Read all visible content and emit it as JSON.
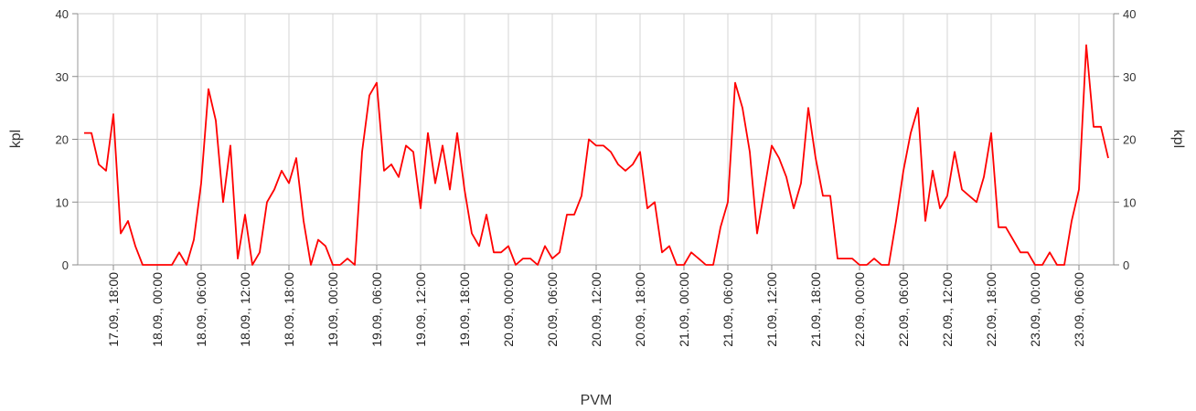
{
  "chart_data": {
    "type": "line",
    "xlabel": "PVM",
    "ylabel": "kpl",
    "ylabel_right": "kpl",
    "ylim": [
      0,
      40
    ],
    "yticks": [
      0,
      10,
      20,
      30,
      40
    ],
    "grid": true,
    "x_ticks": [
      {
        "label": "17.09., 18:00",
        "index": 4
      },
      {
        "label": "18.09., 00:00",
        "index": 10
      },
      {
        "label": "18.09., 06:00",
        "index": 16
      },
      {
        "label": "18.09., 12:00",
        "index": 22
      },
      {
        "label": "18.09., 18:00",
        "index": 28
      },
      {
        "label": "19.09., 00:00",
        "index": 34
      },
      {
        "label": "19.09., 06:00",
        "index": 40
      },
      {
        "label": "19.09., 12:00",
        "index": 46
      },
      {
        "label": "19.09., 18:00",
        "index": 52
      },
      {
        "label": "20.09., 00:00",
        "index": 58
      },
      {
        "label": "20.09., 06:00",
        "index": 64
      },
      {
        "label": "20.09., 12:00",
        "index": 70
      },
      {
        "label": "20.09., 18:00",
        "index": 76
      },
      {
        "label": "21.09., 00:00",
        "index": 82
      },
      {
        "label": "21.09., 06:00",
        "index": 88
      },
      {
        "label": "21.09., 12:00",
        "index": 94
      },
      {
        "label": "21.09., 18:00",
        "index": 100
      },
      {
        "label": "22.09., 00:00",
        "index": 106
      },
      {
        "label": "22.09., 06:00",
        "index": 112
      },
      {
        "label": "22.09., 12:00",
        "index": 118
      },
      {
        "label": "22.09., 18:00",
        "index": 124
      },
      {
        "label": "23.09., 00:00",
        "index": 130
      },
      {
        "label": "23.09., 06:00",
        "index": 136
      }
    ],
    "series": [
      {
        "color": "#ff0000",
        "values": [
          21,
          21,
          16,
          15,
          24,
          5,
          7,
          3,
          0,
          0,
          0,
          0,
          0,
          2,
          0,
          4,
          13,
          28,
          23,
          10,
          19,
          1,
          8,
          0,
          2,
          10,
          12,
          15,
          13,
          17,
          7,
          0,
          4,
          3,
          0,
          0,
          1,
          0,
          18,
          27,
          29,
          15,
          16,
          14,
          19,
          18,
          9,
          21,
          13,
          19,
          12,
          21,
          12,
          5,
          3,
          8,
          2,
          2,
          3,
          0,
          1,
          1,
          0,
          3,
          1,
          2,
          8,
          8,
          11,
          20,
          19,
          19,
          18,
          16,
          15,
          16,
          18,
          9,
          10,
          2,
          3,
          0,
          0,
          2,
          1,
          0,
          0,
          6,
          10,
          29,
          25,
          18,
          5,
          12,
          19,
          17,
          14,
          9,
          13,
          25,
          17,
          11,
          11,
          1,
          1,
          1,
          0,
          0,
          1,
          0,
          0,
          7,
          15,
          21,
          25,
          7,
          15,
          9,
          11,
          18,
          12,
          11,
          10,
          14,
          21,
          6,
          6,
          4,
          2,
          2,
          0,
          0,
          2,
          0,
          0,
          7,
          12,
          35,
          22,
          22,
          17
        ]
      }
    ]
  }
}
